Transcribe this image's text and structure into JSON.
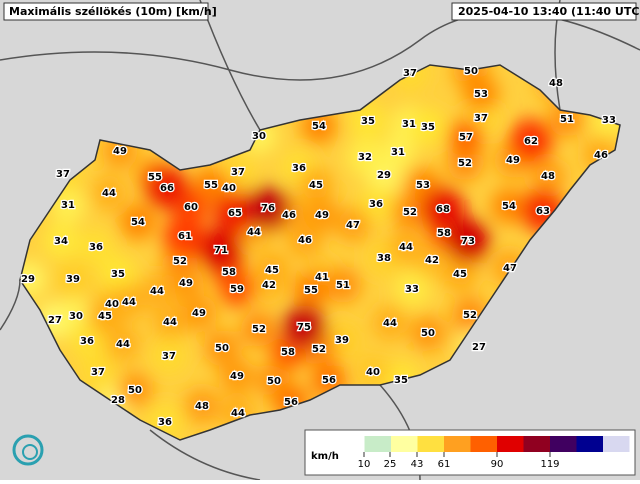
{
  "header": {
    "title": "Maximális széllökés (10m) [km/h]",
    "timestamp": "2025-04-10 13:40 (11:40 UTC)"
  },
  "stations": [
    37,
    50,
    48,
    53,
    37,
    51,
    33,
    54,
    35,
    31,
    35,
    57,
    62,
    46,
    30,
    49,
    37,
    36,
    32,
    31,
    52,
    49,
    48,
    37,
    55,
    66,
    55,
    40,
    45,
    29,
    53,
    44,
    60,
    76,
    46,
    49,
    36,
    52,
    68,
    54,
    63,
    31,
    54,
    65,
    47,
    34,
    61,
    44,
    46,
    58,
    73,
    36,
    71,
    44,
    42,
    52,
    38,
    47,
    29,
    39,
    35,
    58,
    45,
    41,
    45,
    49,
    42,
    59,
    51,
    44,
    55,
    33,
    40,
    44,
    27,
    30,
    45,
    49,
    44,
    52,
    75,
    44,
    52,
    36,
    44,
    39,
    50,
    50,
    52,
    58,
    37,
    27,
    37,
    49,
    50,
    56,
    40,
    35,
    50,
    28,
    48,
    56,
    44,
    36
  ],
  "legend": {
    "unit": "km/h",
    "ticks": [
      10,
      25,
      43,
      61,
      90,
      119
    ]
  }
}
